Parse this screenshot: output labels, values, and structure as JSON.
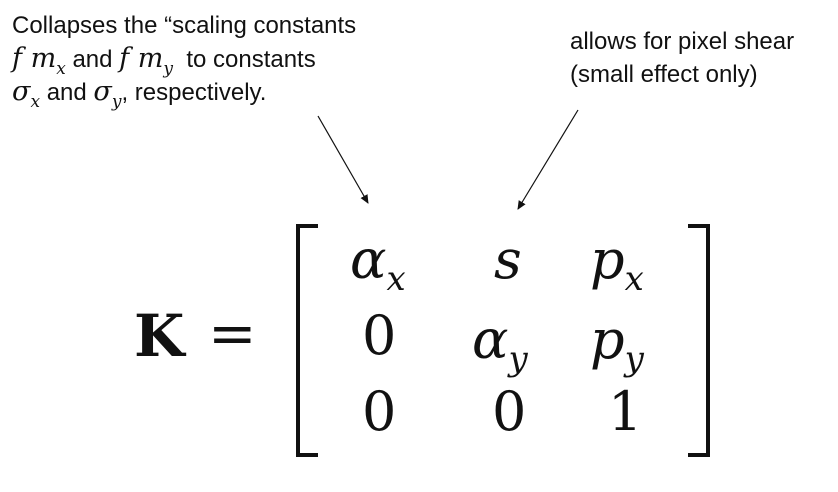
{
  "annotation_left": {
    "line1": "Collapses the “scaling constants",
    "line2_var1": "f m",
    "line2_sub1": "x",
    "line2_mid": "and",
    "line2_var2": "f m",
    "line2_sub2": "y",
    "line2_end": "to constants",
    "line3_var1": "σ",
    "line3_sub1": "x",
    "line3_mid": "and",
    "line3_var2": "σ",
    "line3_sub2": "y",
    "line3_end": ",  respectively."
  },
  "annotation_right": {
    "line1": "allows for pixel shear",
    "line2": "(small effect only)"
  },
  "equation": {
    "lhs": "K",
    "equals": "=",
    "matrix": {
      "r0c0_base": "α",
      "r0c0_sub": "x",
      "r0c1": "s",
      "r0c2_base": "p",
      "r0c2_sub": "x",
      "r1c0": "0",
      "r1c1_base": "α",
      "r1c1_sub": "y",
      "r1c2_base": "p",
      "r1c2_sub": "y",
      "r2c0": "0",
      "r2c1": "0",
      "r2c2": "1"
    }
  }
}
